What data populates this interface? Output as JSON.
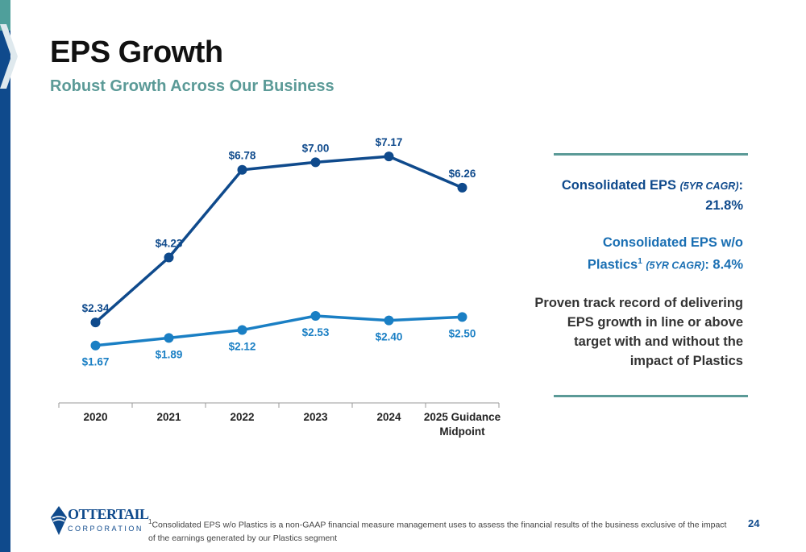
{
  "slide": {
    "title": "EPS Growth",
    "subtitle": "Robust Growth Across Our Business",
    "page_number": "24"
  },
  "panel": {
    "stat1_label": "Consolidated EPS ",
    "stat1_qualifier": "(5YR CAGR)",
    "stat1_colon": ":",
    "stat1_value": "21.8%",
    "stat2_label_line1": "Consolidated EPS w/o",
    "stat2_label_line2": "Plastics",
    "stat2_sup": "1",
    "stat2_qualifier": "(5YR CAGR)",
    "stat2_value": ": 8.4%",
    "statement": "Proven track record of delivering EPS growth in line or above target with and without the impact of Plastics"
  },
  "logo": {
    "line1": "OTTERTAIL",
    "line2": "CORPORATION"
  },
  "footnote": {
    "marker": "1",
    "text": "Consolidated EPS w/o Plastics is a non-GAAP financial measure management uses to assess the financial results of the business exclusive of the impact of the earnings generated by our Plastics segment"
  },
  "chart_data": {
    "type": "line",
    "categories": [
      "2020",
      "2021",
      "2022",
      "2023",
      "2024",
      "2025 Guidance Midpoint"
    ],
    "series": [
      {
        "values": [
          2.34,
          4.23,
          6.78,
          7.0,
          7.17,
          6.26
        ],
        "labels": [
          "$2.34",
          "$4.23",
          "$6.78",
          "$7.00",
          "$7.17",
          "$6.26"
        ],
        "color": "#0f4a8c"
      },
      {
        "values": [
          1.67,
          1.89,
          2.12,
          2.53,
          2.4,
          2.5
        ],
        "labels": [
          "$1.67",
          "$1.89",
          "$2.12",
          "$2.53",
          "$2.40",
          "$2.50"
        ],
        "color": "#1a7fc4"
      }
    ],
    "ylim": [
      0,
      7.5
    ],
    "grid": false
  }
}
